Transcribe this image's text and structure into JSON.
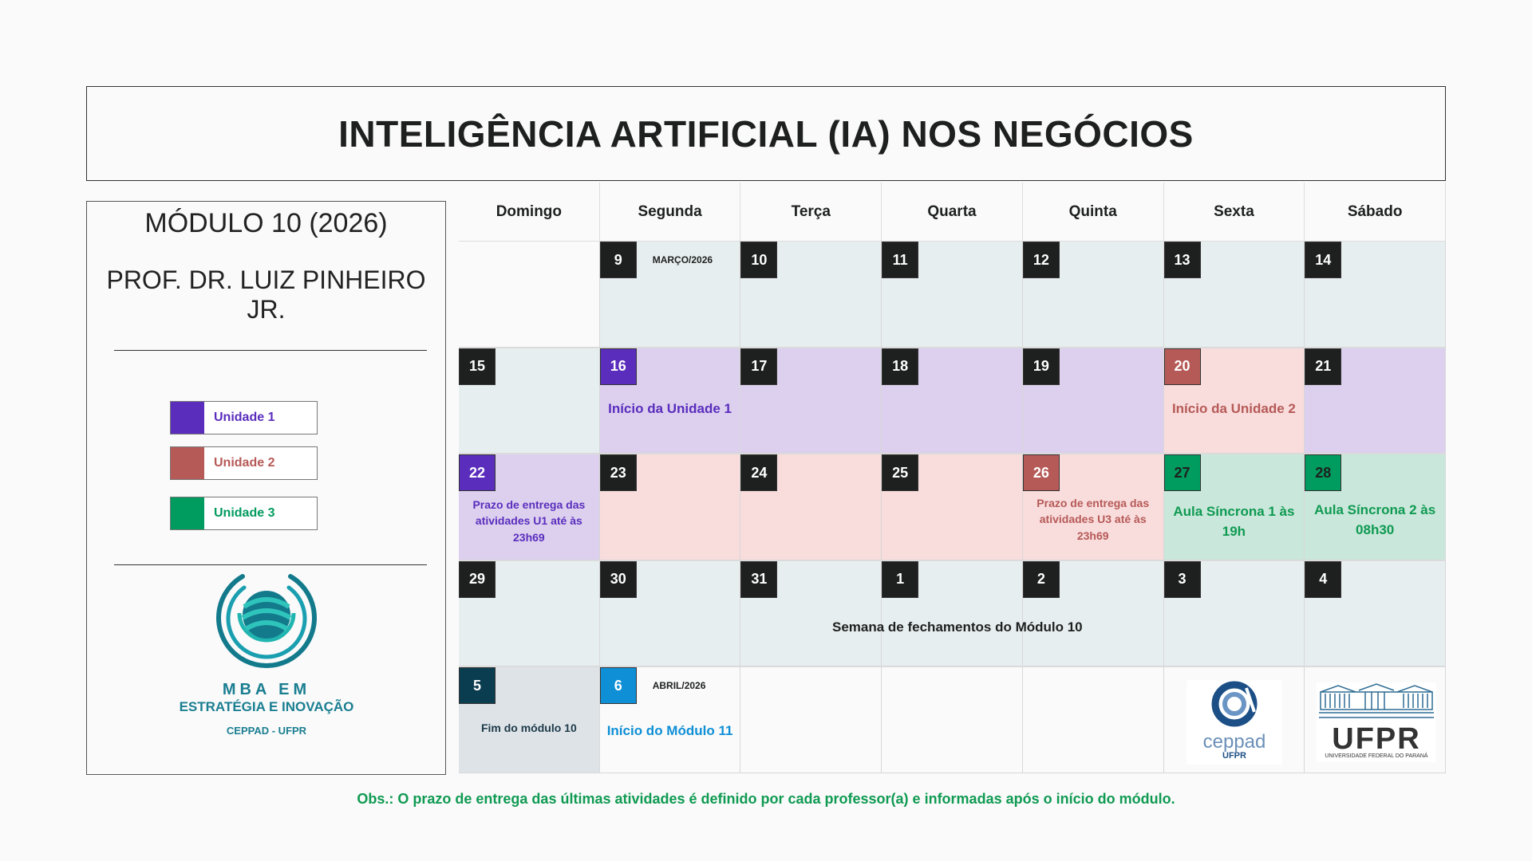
{
  "title": "INTELIGÊNCIA ARTIFICIAL (IA) NOS NEGÓCIOS",
  "module": "MÓDULO 10 (2026)",
  "professor": "PROF. DR. LUIZ PINHEIRO JR.",
  "legend": [
    {
      "label": "Unidade 1",
      "color": "#5a2dbd",
      "text": "#5a2dbd"
    },
    {
      "label": "Unidade 2",
      "color": "#b55a57",
      "text": "#b55a57"
    },
    {
      "label": "Unidade 3",
      "color": "#009b5e",
      "text": "#009b5e"
    }
  ],
  "mba_logo": {
    "line1": "MBA EM",
    "line2": "ESTRATÉGIA E INOVAÇÃO",
    "line3": "CEPPAD - UFPR"
  },
  "days": [
    "Domingo",
    "Segunda",
    "Terça",
    "Quarta",
    "Quinta",
    "Sexta",
    "Sábado"
  ],
  "weeks": [
    [
      {
        "d": "",
        "bg": "#fafafa"
      },
      {
        "d": "9",
        "bg": "#e7eef0",
        "b": "#1e201f",
        "month": "MARÇO/2026"
      },
      {
        "d": "10",
        "bg": "#e7eef0",
        "b": "#1e201f"
      },
      {
        "d": "11",
        "bg": "#e7eef0",
        "b": "#1e201f"
      },
      {
        "d": "12",
        "bg": "#e7eef0",
        "b": "#1e201f"
      },
      {
        "d": "13",
        "bg": "#e7eef0",
        "b": "#1e201f"
      },
      {
        "d": "14",
        "bg": "#e7eef0",
        "b": "#1e201f"
      }
    ],
    [
      {
        "d": "15",
        "bg": "#e7eef0",
        "b": "#1e201f"
      },
      {
        "d": "16",
        "bg": "#dcd0ee",
        "b": "#5a2dbd",
        "note": "Início da Unidade 1",
        "nc": "#5a2dbd",
        "ns": 17,
        "nt": 64
      },
      {
        "d": "17",
        "bg": "#dcd0ee",
        "b": "#1e201f"
      },
      {
        "d": "18",
        "bg": "#dcd0ee",
        "b": "#1e201f"
      },
      {
        "d": "19",
        "bg": "#dcd0ee",
        "b": "#1e201f"
      },
      {
        "d": "20",
        "bg": "#f9dcdc",
        "b": "#b55a57",
        "note": "Início da Unidade 2",
        "nc": "#b55a57",
        "ns": 17,
        "nt": 64
      },
      {
        "d": "21",
        "bg": "#dcd0ee",
        "b": "#1e201f"
      }
    ],
    [
      {
        "d": "22",
        "bg": "#dcd0ee",
        "b": "#5a2dbd",
        "note": "Prazo de entrega das atividades U1 até às 23h69",
        "nc": "#5a2dbd",
        "ns": 14,
        "nt": 53
      },
      {
        "d": "23",
        "bg": "#f9dcdc",
        "b": "#1e201f"
      },
      {
        "d": "24",
        "bg": "#f9dcdc",
        "b": "#1e201f"
      },
      {
        "d": "25",
        "bg": "#f9dcdc",
        "b": "#1e201f"
      },
      {
        "d": "26",
        "bg": "#f9dcdc",
        "b": "#b55a57",
        "note": "Prazo de entrega das atividades U3 até às 23h69",
        "nc": "#b55a57",
        "ns": 14,
        "nt": 51
      },
      {
        "d": "27",
        "bg": "#c9e7da",
        "b": "#009b5e",
        "dark": true,
        "note": "Aula Síncrona 1 às 19h",
        "nc": "#0f9a52",
        "ns": 17,
        "nt": 60
      },
      {
        "d": "28",
        "bg": "#c9e7da",
        "b": "#009b5e",
        "dark": true,
        "note": "Aula Síncrona 2 às 08h30",
        "nc": "#0f9a52",
        "ns": 17,
        "nt": 58
      }
    ],
    [
      {
        "d": "29",
        "bg": "#e7eef0",
        "b": "#1e201f"
      },
      {
        "d": "30",
        "bg": "#e7eef0",
        "b": "#1e201f"
      },
      {
        "d": "31",
        "bg": "#e7eef0",
        "b": "#1e201f"
      },
      {
        "d": "1",
        "bg": "#e7eef0",
        "b": "#1e201f"
      },
      {
        "d": "2",
        "bg": "#e7eef0",
        "b": "#1e201f"
      },
      {
        "d": "3",
        "bg": "#e7eef0",
        "b": "#1e201f"
      },
      {
        "d": "4",
        "bg": "#e7eef0",
        "b": "#1e201f"
      }
    ],
    [
      {
        "d": "5",
        "bg": "#dde3e7",
        "b": "#0b3d50",
        "note": "Fim do módulo 10",
        "nc": "#1e3a4a",
        "ns": 14,
        "nt": 66
      },
      {
        "d": "6",
        "bg": "#fafafa",
        "b": "#0e8fd6",
        "month": "ABRIL/2026",
        "note": "Início do Módulo 11",
        "nc": "#0e8fd6",
        "ns": 17,
        "nt": 68
      },
      {
        "d": "",
        "bg": "#fafafa"
      },
      {
        "d": "",
        "bg": "#fafafa"
      },
      {
        "d": "",
        "bg": "#fafafa"
      },
      {
        "d": "",
        "bg": "#fafafa"
      },
      {
        "d": "",
        "bg": "#fafafa"
      }
    ]
  ],
  "closing_week": "Semana de fechamentos do Módulo 10",
  "ceppad_logo": {
    "name": "ceppad",
    "sub": "UFPR"
  },
  "ufpr_logo": {
    "name": "UFPR",
    "sub": "UNIVERSIDADE FEDERAL DO PARANÁ"
  },
  "obs": "Obs.: O prazo de entrega das últimas atividades é definido por cada professor(a) e informadas após o início do módulo."
}
